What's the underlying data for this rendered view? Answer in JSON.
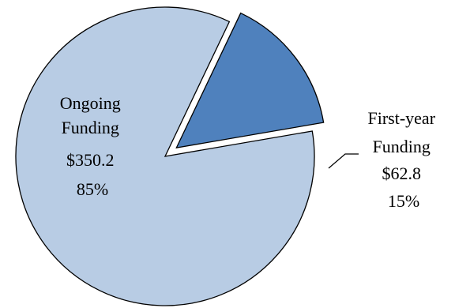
{
  "chart_data": {
    "type": "pie",
    "title": "",
    "slices": [
      {
        "name": "Ongoing Funding",
        "label_lines": [
          "Ongoing",
          "Funding",
          "$350.2",
          "85%"
        ],
        "value": 350.2,
        "percent": 85,
        "color": "#b8cce4",
        "exploded": false
      },
      {
        "name": "First-year Funding",
        "label_lines": [
          "First-year",
          "Funding",
          "$62.8",
          "15%"
        ],
        "value": 62.8,
        "percent": 15,
        "color": "#4f81bd",
        "exploded": true
      }
    ],
    "legend": "none"
  }
}
